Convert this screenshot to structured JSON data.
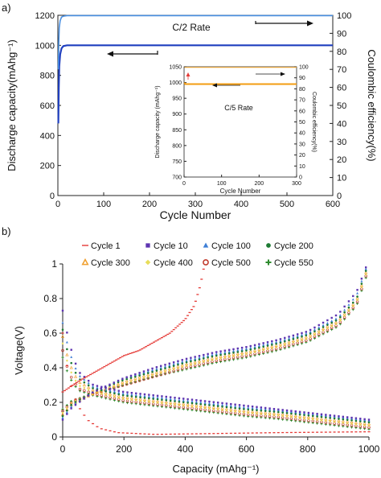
{
  "panel_labels": {
    "a": "a)",
    "b": "b)"
  },
  "chart_data": [
    {
      "type": "line",
      "panel": "a",
      "xlabel": "Cycle Number",
      "ylabel_left": "Discharge capacity(mAhg⁻¹)",
      "ylabel_right": "Coulombic efficiency(%)",
      "annotation": "C/2 Rate",
      "xlim": [
        0,
        600
      ],
      "ylim_left": [
        0,
        1200
      ],
      "ylim_right": [
        0,
        100
      ],
      "x_ticks": [
        "0",
        "100",
        "200",
        "300",
        "400",
        "500",
        "600"
      ],
      "y_ticks_left": [
        "0",
        "200",
        "400",
        "600",
        "800",
        "1000",
        "1200"
      ],
      "y_ticks_right": [
        "0",
        "10",
        "20",
        "30",
        "40",
        "50",
        "60",
        "70",
        "80",
        "90",
        "100"
      ],
      "series": [
        {
          "color": "#1f3fbf",
          "axis": "left",
          "x": [
            1,
            2,
            3,
            5,
            8,
            12,
            20,
            50,
            100,
            200,
            300,
            400,
            500,
            600
          ],
          "values": [
            480,
            720,
            860,
            940,
            980,
            995,
            1000,
            1000,
            1000,
            1000,
            1000,
            1000,
            1000,
            1000
          ]
        },
        {
          "color": "#4a90e2",
          "axis": "right",
          "x": [
            1,
            2,
            3,
            5,
            8,
            12,
            20,
            50,
            100,
            200,
            300,
            400,
            500,
            600
          ],
          "values": [
            70,
            85,
            93,
            97,
            99,
            99.5,
            99.8,
            99.8,
            99.8,
            99.8,
            99.8,
            99.8,
            99.8,
            99.8
          ]
        }
      ]
    },
    {
      "type": "line",
      "panel": "a-inset",
      "xlabel": "Cycle Number",
      "ylabel_left": "Discharge capacity (mAhg⁻¹)",
      "ylabel_right": "Coulombic efficiency(%)",
      "annotation": "C/5 Rate",
      "xlim": [
        0,
        300
      ],
      "ylim_left": [
        700,
        1050
      ],
      "ylim_right": [
        0,
        100
      ],
      "x_ticks": [
        "0",
        "100",
        "200",
        "300"
      ],
      "y_ticks_left": [
        "700",
        "750",
        "800",
        "850",
        "900",
        "950",
        "1000",
        "1050"
      ],
      "y_ticks_right": [
        "0",
        "10",
        "20",
        "30",
        "40",
        "50",
        "60",
        "70",
        "80",
        "90",
        "100"
      ],
      "series": [
        {
          "color": "#f39c12",
          "axis": "left",
          "x": [
            1,
            3,
            10,
            50,
            100,
            200,
            300
          ],
          "values": [
            1000,
            995,
            995,
            995,
            995,
            995,
            995
          ]
        },
        {
          "color": "#f5b041",
          "axis": "right",
          "x": [
            1,
            3,
            10,
            50,
            100,
            200,
            300
          ],
          "values": [
            99.5,
            99.5,
            99.5,
            99.5,
            99.5,
            99.5,
            99.5
          ]
        }
      ]
    },
    {
      "type": "scatter",
      "panel": "b",
      "xlabel": "Capacity (mAhg⁻¹)",
      "ylabel": "Voltage(V)",
      "xlim": [
        0,
        1000
      ],
      "ylim": [
        0,
        1
      ],
      "x_ticks": [
        "0",
        "200",
        "400",
        "600",
        "800",
        "1000"
      ],
      "y_ticks": [
        "0",
        "0.2",
        "0.4",
        "0.6",
        "0.8",
        "1"
      ],
      "series": [
        {
          "name": "Cycle 1",
          "color": "#e53935",
          "marker": "dash",
          "charge": [
            [
              0,
              0.26
            ],
            [
              50,
              0.32
            ],
            [
              100,
              0.37
            ],
            [
              150,
              0.42
            ],
            [
              200,
              0.47
            ],
            [
              250,
              0.5
            ],
            [
              300,
              0.55
            ],
            [
              350,
              0.6
            ],
            [
              400,
              0.68
            ],
            [
              430,
              0.76
            ],
            [
              450,
              0.88
            ],
            [
              460,
              0.97
            ]
          ],
          "discharge": [
            [
              0,
              0.6
            ],
            [
              15,
              0.4
            ],
            [
              30,
              0.28
            ],
            [
              50,
              0.18
            ],
            [
              80,
              0.1
            ],
            [
              120,
              0.05
            ],
            [
              180,
              0.025
            ],
            [
              300,
              0.015
            ],
            [
              500,
              0.02
            ],
            [
              700,
              0.025
            ],
            [
              1000,
              0.03
            ]
          ]
        },
        {
          "name": "Cycle 10",
          "color": "#5e35b1",
          "marker": "square",
          "charge": [
            [
              0,
              0.1
            ],
            [
              30,
              0.17
            ],
            [
              100,
              0.26
            ],
            [
              200,
              0.34
            ],
            [
              300,
              0.4
            ],
            [
              400,
              0.45
            ],
            [
              500,
              0.49
            ],
            [
              600,
              0.52
            ],
            [
              700,
              0.56
            ],
            [
              800,
              0.61
            ],
            [
              900,
              0.71
            ],
            [
              960,
              0.84
            ],
            [
              990,
              0.98
            ]
          ],
          "discharge": [
            [
              0,
              0.73
            ],
            [
              20,
              0.55
            ],
            [
              50,
              0.38
            ],
            [
              100,
              0.3
            ],
            [
              200,
              0.26
            ],
            [
              300,
              0.24
            ],
            [
              400,
              0.22
            ],
            [
              500,
              0.2
            ],
            [
              600,
              0.18
            ],
            [
              700,
              0.16
            ],
            [
              800,
              0.14
            ],
            [
              900,
              0.12
            ],
            [
              1000,
              0.1
            ]
          ]
        },
        {
          "name": "Cycle 100",
          "color": "#3f7fd6",
          "marker": "triangle",
          "charge": [
            [
              0,
              0.11
            ],
            [
              30,
              0.18
            ],
            [
              100,
              0.26
            ],
            [
              200,
              0.34
            ],
            [
              300,
              0.39
            ],
            [
              400,
              0.44
            ],
            [
              500,
              0.48
            ],
            [
              600,
              0.51
            ],
            [
              700,
              0.55
            ],
            [
              800,
              0.6
            ],
            [
              900,
              0.69
            ],
            [
              960,
              0.82
            ],
            [
              990,
              0.97
            ]
          ],
          "discharge": [
            [
              0,
              0.66
            ],
            [
              20,
              0.5
            ],
            [
              50,
              0.36
            ],
            [
              100,
              0.29
            ],
            [
              200,
              0.25
            ],
            [
              300,
              0.23
            ],
            [
              400,
              0.21
            ],
            [
              500,
              0.19
            ],
            [
              600,
              0.17
            ],
            [
              700,
              0.155
            ],
            [
              800,
              0.135
            ],
            [
              900,
              0.115
            ],
            [
              1000,
              0.095
            ]
          ]
        },
        {
          "name": "Cycle 200",
          "color": "#1e7b34",
          "marker": "circle",
          "charge": [
            [
              0,
              0.12
            ],
            [
              30,
              0.19
            ],
            [
              100,
              0.26
            ],
            [
              200,
              0.33
            ],
            [
              300,
              0.38
            ],
            [
              400,
              0.43
            ],
            [
              500,
              0.47
            ],
            [
              600,
              0.5
            ],
            [
              700,
              0.54
            ],
            [
              800,
              0.59
            ],
            [
              900,
              0.68
            ],
            [
              960,
              0.8
            ],
            [
              990,
              0.96
            ]
          ],
          "discharge": [
            [
              0,
              0.62
            ],
            [
              20,
              0.46
            ],
            [
              50,
              0.34
            ],
            [
              100,
              0.28
            ],
            [
              200,
              0.24
            ],
            [
              300,
              0.22
            ],
            [
              400,
              0.2
            ],
            [
              500,
              0.18
            ],
            [
              600,
              0.16
            ],
            [
              700,
              0.145
            ],
            [
              800,
              0.125
            ],
            [
              900,
              0.105
            ],
            [
              1000,
              0.085
            ]
          ]
        },
        {
          "name": "Cycle 300",
          "color": "#f0a030",
          "marker": "triangle-open",
          "charge": [
            [
              0,
              0.13
            ],
            [
              30,
              0.19
            ],
            [
              100,
              0.25
            ],
            [
              200,
              0.32
            ],
            [
              300,
              0.37
            ],
            [
              400,
              0.42
            ],
            [
              500,
              0.46
            ],
            [
              600,
              0.49
            ],
            [
              700,
              0.53
            ],
            [
              800,
              0.58
            ],
            [
              900,
              0.67
            ],
            [
              960,
              0.79
            ],
            [
              990,
              0.95
            ]
          ],
          "discharge": [
            [
              0,
              0.58
            ],
            [
              20,
              0.43
            ],
            [
              50,
              0.32
            ],
            [
              100,
              0.27
            ],
            [
              200,
              0.23
            ],
            [
              300,
              0.21
            ],
            [
              400,
              0.19
            ],
            [
              500,
              0.17
            ],
            [
              600,
              0.15
            ],
            [
              700,
              0.135
            ],
            [
              800,
              0.115
            ],
            [
              900,
              0.095
            ],
            [
              1000,
              0.075
            ]
          ]
        },
        {
          "name": "Cycle 400",
          "color": "#e8dd5a",
          "marker": "diamond",
          "charge": [
            [
              0,
              0.14
            ],
            [
              30,
              0.2
            ],
            [
              100,
              0.25
            ],
            [
              200,
              0.31
            ],
            [
              300,
              0.36
            ],
            [
              400,
              0.41
            ],
            [
              500,
              0.45
            ],
            [
              600,
              0.48
            ],
            [
              700,
              0.52
            ],
            [
              800,
              0.57
            ],
            [
              900,
              0.66
            ],
            [
              960,
              0.78
            ],
            [
              990,
              0.94
            ]
          ],
          "discharge": [
            [
              0,
              0.54
            ],
            [
              20,
              0.4
            ],
            [
              50,
              0.3
            ],
            [
              100,
              0.26
            ],
            [
              200,
              0.22
            ],
            [
              300,
              0.2
            ],
            [
              400,
              0.18
            ],
            [
              500,
              0.16
            ],
            [
              600,
              0.14
            ],
            [
              700,
              0.125
            ],
            [
              800,
              0.105
            ],
            [
              900,
              0.085
            ],
            [
              1000,
              0.065
            ]
          ]
        },
        {
          "name": "Cycle 500",
          "color": "#c0392b",
          "marker": "circle-open",
          "charge": [
            [
              0,
              0.15
            ],
            [
              30,
              0.2
            ],
            [
              100,
              0.25
            ],
            [
              200,
              0.3
            ],
            [
              300,
              0.35
            ],
            [
              400,
              0.4
            ],
            [
              500,
              0.44
            ],
            [
              600,
              0.47
            ],
            [
              700,
              0.51
            ],
            [
              800,
              0.56
            ],
            [
              900,
              0.65
            ],
            [
              960,
              0.77
            ],
            [
              990,
              0.93
            ]
          ],
          "discharge": [
            [
              0,
              0.5
            ],
            [
              20,
              0.37
            ],
            [
              50,
              0.28
            ],
            [
              100,
              0.25
            ],
            [
              200,
              0.21
            ],
            [
              300,
              0.19
            ],
            [
              400,
              0.17
            ],
            [
              500,
              0.15
            ],
            [
              600,
              0.13
            ],
            [
              700,
              0.115
            ],
            [
              800,
              0.095
            ],
            [
              900,
              0.075
            ],
            [
              1000,
              0.055
            ]
          ]
        },
        {
          "name": "Cycle 550",
          "color": "#2e8b2e",
          "marker": "plus",
          "charge": [
            [
              0,
              0.16
            ],
            [
              30,
              0.21
            ],
            [
              100,
              0.25
            ],
            [
              200,
              0.3
            ],
            [
              300,
              0.35
            ],
            [
              400,
              0.39
            ],
            [
              500,
              0.43
            ],
            [
              600,
              0.46
            ],
            [
              700,
              0.5
            ],
            [
              800,
              0.55
            ],
            [
              900,
              0.64
            ],
            [
              960,
              0.76
            ],
            [
              990,
              0.92
            ]
          ],
          "discharge": [
            [
              0,
              0.46
            ],
            [
              20,
              0.35
            ],
            [
              50,
              0.27
            ],
            [
              100,
              0.24
            ],
            [
              200,
              0.2
            ],
            [
              300,
              0.18
            ],
            [
              400,
              0.16
            ],
            [
              500,
              0.14
            ],
            [
              600,
              0.12
            ],
            [
              700,
              0.105
            ],
            [
              800,
              0.085
            ],
            [
              900,
              0.065
            ],
            [
              1000,
              0.045
            ]
          ]
        }
      ]
    }
  ]
}
